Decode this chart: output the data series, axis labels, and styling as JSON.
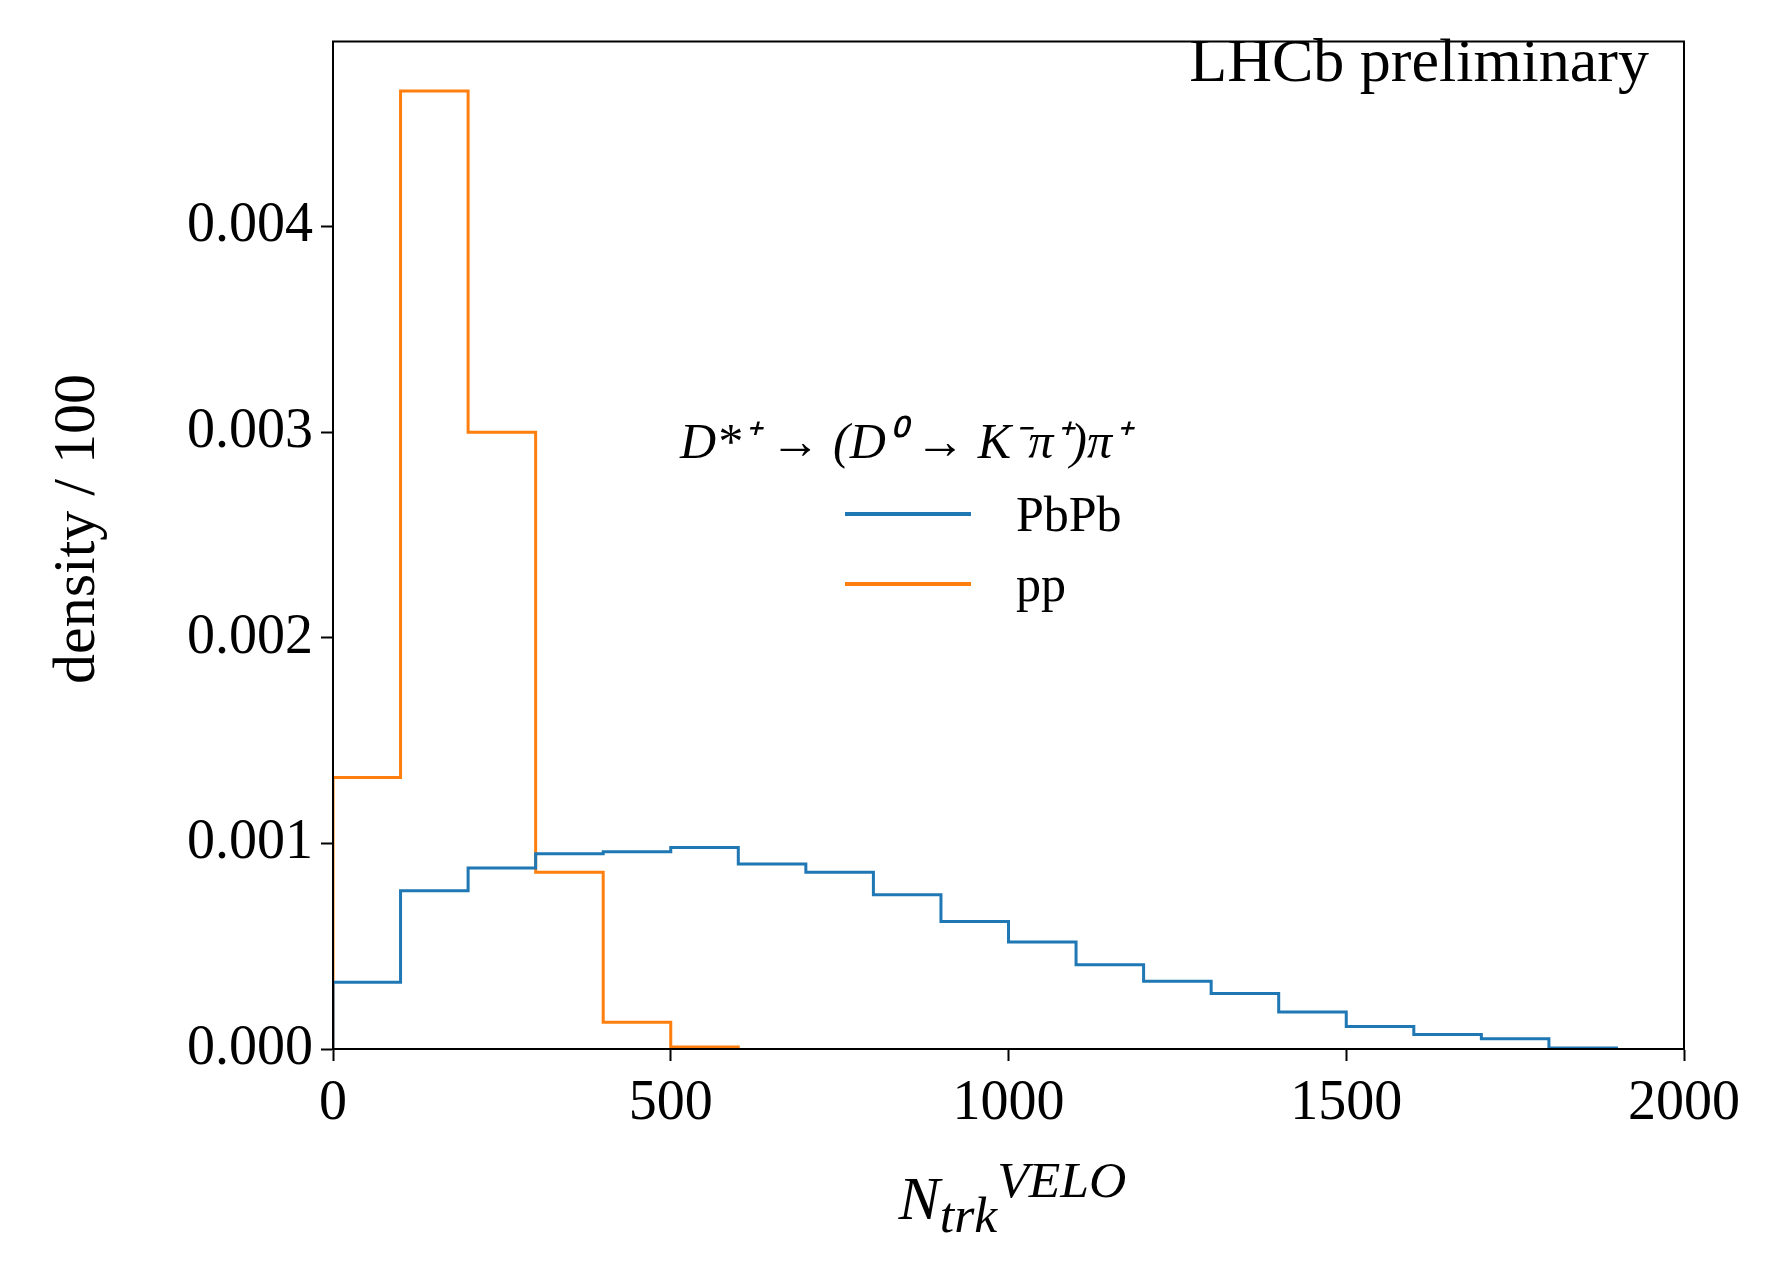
{
  "chart_data": {
    "type": "histogram",
    "xlabel": "N$_{trk}$$^{VELO}$",
    "ylabel": "density / 100",
    "legend_title": "D*⁺ → (D⁰ → K⁻π⁺)π⁺",
    "annotations": [
      "LHCb preliminary"
    ],
    "bins": [
      0,
      100,
      200,
      300,
      400,
      500,
      600,
      700,
      800,
      900,
      1000,
      1100,
      1200,
      1300,
      1400,
      1500,
      1600,
      1700,
      1800,
      1900
    ],
    "series": [
      {
        "name": "PbPb",
        "color": "#1f77b4",
        "values": [
          0.000325,
          0.00077,
          0.00088,
          0.00095,
          0.00096,
          0.00098,
          0.0009,
          0.00086,
          0.00075,
          0.00062,
          0.00052,
          0.00041,
          0.00033,
          0.00027,
          0.00018,
          0.00011,
          7e-05,
          5e-05,
          5e-06
        ]
      },
      {
        "name": "pp",
        "color": "#ff7f0e",
        "bins": [
          0,
          100,
          200,
          300,
          400,
          500,
          600
        ],
        "values": [
          0.00132,
          0.00466,
          0.003,
          0.00086,
          0.00013,
          1e-05
        ]
      }
    ],
    "xlim": [
      0,
      2000
    ],
    "xticks": [
      0,
      500,
      1000,
      1500,
      2000
    ],
    "ylim": [
      0,
      0.0049
    ],
    "yticks": [
      {
        "value": 0,
        "label": "0.000"
      },
      {
        "value": 0.001,
        "label": "0.001"
      },
      {
        "value": 0.002,
        "label": "0.002"
      },
      {
        "value": 0.003,
        "label": "0.003"
      },
      {
        "value": 0.004,
        "label": "0.004"
      }
    ],
    "grid": false,
    "legend": "right"
  }
}
